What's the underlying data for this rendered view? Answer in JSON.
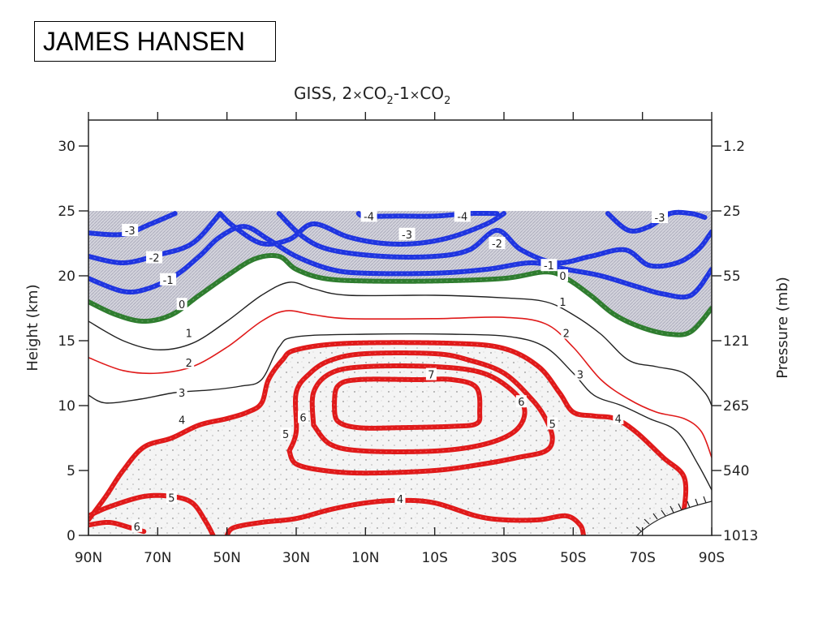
{
  "author": "JAMES HANSEN",
  "chart_data": {
    "type": "contour",
    "title": "GISS, 2×CO2−1×CO2",
    "title_parts": {
      "a": "GISS, 2",
      "b": "CO",
      "c": "2",
      "d": "-1",
      "e": "CO",
      "f": "2"
    },
    "xlabel": "",
    "ylabel": "Height (km)",
    "ylabel_right": "Pressure (mb)",
    "x_ticks": [
      "90N",
      "70N",
      "50N",
      "30N",
      "10N",
      "10S",
      "30S",
      "50S",
      "70S",
      "90S"
    ],
    "x_range": [
      90,
      -90
    ],
    "y_range": [
      0,
      32
    ],
    "y_ticks": [
      0,
      5,
      10,
      15,
      20,
      25,
      30
    ],
    "pressure_ticks": [
      {
        "label": "1.2",
        "height": 30
      },
      {
        "label": "25",
        "height": 25
      },
      {
        "label": "55",
        "height": 20
      },
      {
        "label": "121",
        "height": 15
      },
      {
        "label": "265",
        "height": 10
      },
      {
        "label": "540",
        "height": 5
      },
      {
        "label": "1013",
        "height": 0
      }
    ],
    "model_top_km": 25,
    "shading": {
      "cooling_region": "hatched gray above 0 contour",
      "warming_region": "stippled inside 4 contour"
    },
    "colors": {
      "negative": "#1f35e0",
      "zero": "#2f7d2f",
      "positive_thick": "#e01a1a",
      "positive_thin": "#e01a1a",
      "neutral": "#222222",
      "cooling_fill": "#c9c9d6"
    },
    "contours": [
      {
        "level": -4,
        "color": "blue",
        "points": [
          [
            12,
            24.8
          ],
          [
            10,
            24.6
          ],
          [
            0,
            24.6
          ],
          [
            -10,
            24.6
          ],
          [
            -20,
            24.8
          ],
          [
            -28,
            24.8
          ]
        ]
      },
      {
        "level": -3,
        "color": "blue",
        "points": [
          [
            90,
            23.3
          ],
          [
            80,
            23.2
          ],
          [
            72,
            24
          ],
          [
            65,
            24.8
          ]
        ]
      },
      {
        "level": -3,
        "color": "blue",
        "points": [
          [
            52,
            24.8
          ],
          [
            48,
            23.8
          ],
          [
            40,
            22.5
          ],
          [
            32,
            22.8
          ],
          [
            25,
            24
          ],
          [
            15,
            23
          ],
          [
            5,
            22.5
          ],
          [
            -5,
            22.5
          ],
          [
            -15,
            23
          ],
          [
            -25,
            24
          ],
          [
            -30,
            24.8
          ]
        ]
      },
      {
        "level": -3,
        "color": "blue",
        "points": [
          [
            -60,
            24.8
          ],
          [
            -66,
            23.5
          ],
          [
            -72,
            23.8
          ],
          [
            -78,
            24.8
          ],
          [
            -84,
            24.8
          ],
          [
            -88,
            24.5
          ]
        ]
      },
      {
        "level": -2,
        "color": "blue",
        "points": [
          [
            90,
            21.5
          ],
          [
            80,
            21
          ],
          [
            70,
            21.6
          ],
          [
            60,
            22.5
          ],
          [
            52,
            24.8
          ]
        ]
      },
      {
        "level": -2,
        "color": "blue",
        "points": [
          [
            35,
            24.8
          ],
          [
            28,
            23
          ],
          [
            20,
            22
          ],
          [
            5,
            21.5
          ],
          [
            -10,
            21.5
          ],
          [
            -20,
            22
          ],
          [
            -28,
            23.5
          ],
          [
            -35,
            22
          ],
          [
            -45,
            21
          ],
          [
            -55,
            21.5
          ],
          [
            -65,
            22
          ],
          [
            -72,
            20.8
          ],
          [
            -80,
            21
          ],
          [
            -86,
            22
          ],
          [
            -90,
            23.4
          ]
        ]
      },
      {
        "level": -1,
        "color": "blue",
        "points": [
          [
            90,
            19.8
          ],
          [
            80,
            18.8
          ],
          [
            73,
            19
          ],
          [
            65,
            20
          ],
          [
            58,
            21.5
          ],
          [
            52,
            23
          ],
          [
            45,
            23.8
          ],
          [
            38,
            22.8
          ],
          [
            30,
            21.5
          ],
          [
            20,
            20.5
          ],
          [
            10,
            20.2
          ],
          [
            -10,
            20.2
          ],
          [
            -25,
            20.5
          ],
          [
            -38,
            21
          ],
          [
            -48,
            20.5
          ],
          [
            -58,
            20
          ],
          [
            -68,
            19.2
          ],
          [
            -76,
            18.6
          ],
          [
            -84,
            18.5
          ],
          [
            -90,
            20.5
          ]
        ]
      },
      {
        "level": 0,
        "color": "green",
        "points": [
          [
            90,
            18
          ],
          [
            82,
            17
          ],
          [
            74,
            16.5
          ],
          [
            66,
            17
          ],
          [
            58,
            18.5
          ],
          [
            50,
            20
          ],
          [
            42,
            21.3
          ],
          [
            35,
            21.5
          ],
          [
            30,
            20.5
          ],
          [
            22,
            19.8
          ],
          [
            10,
            19.6
          ],
          [
            -10,
            19.6
          ],
          [
            -30,
            19.8
          ],
          [
            -42,
            20.3
          ],
          [
            -48,
            19.8
          ],
          [
            -55,
            18.5
          ],
          [
            -62,
            17
          ],
          [
            -70,
            16
          ],
          [
            -78,
            15.5
          ],
          [
            -84,
            15.7
          ],
          [
            -90,
            17.5
          ]
        ]
      },
      {
        "level": 1,
        "color": "black",
        "points": [
          [
            90,
            16.5
          ],
          [
            80,
            15
          ],
          [
            70,
            14.3
          ],
          [
            60,
            14.8
          ],
          [
            50,
            16.5
          ],
          [
            40,
            18.5
          ],
          [
            32,
            19.5
          ],
          [
            25,
            19
          ],
          [
            15,
            18.5
          ],
          [
            -10,
            18.5
          ],
          [
            -30,
            18.3
          ],
          [
            -42,
            18
          ],
          [
            -50,
            17
          ],
          [
            -58,
            15.5
          ],
          [
            -66,
            13.5
          ],
          [
            -74,
            13
          ],
          [
            -82,
            12.5
          ],
          [
            -88,
            11
          ],
          [
            -90,
            10
          ]
        ]
      },
      {
        "level": 2,
        "color": "red",
        "points": [
          [
            90,
            13.7
          ],
          [
            80,
            12.7
          ],
          [
            70,
            12.5
          ],
          [
            60,
            13
          ],
          [
            50,
            14.5
          ],
          [
            40,
            16.5
          ],
          [
            33,
            17.3
          ],
          [
            25,
            17
          ],
          [
            15,
            16.7
          ],
          [
            -10,
            16.7
          ],
          [
            -30,
            16.8
          ],
          [
            -42,
            16.3
          ],
          [
            -50,
            14.5
          ],
          [
            -58,
            12
          ],
          [
            -66,
            10.5
          ],
          [
            -74,
            9.5
          ],
          [
            -82,
            9
          ],
          [
            -87,
            8
          ],
          [
            -90,
            6
          ]
        ]
      },
      {
        "level": 3,
        "color": "black",
        "points": [
          [
            90,
            10.8
          ],
          [
            85,
            10.2
          ],
          [
            75,
            10.5
          ],
          [
            65,
            11
          ],
          [
            55,
            11.2
          ],
          [
            46,
            11.5
          ],
          [
            40,
            12
          ],
          [
            35,
            14.5
          ],
          [
            30,
            15.3
          ],
          [
            10,
            15.5
          ],
          [
            -15,
            15.5
          ],
          [
            -32,
            15.3
          ],
          [
            -42,
            14.5
          ],
          [
            -50,
            12.5
          ],
          [
            -56,
            10.8
          ],
          [
            -64,
            10
          ],
          [
            -72,
            9
          ],
          [
            -80,
            8
          ],
          [
            -86,
            5.5
          ],
          [
            -90,
            3.5
          ]
        ]
      },
      {
        "level": 4,
        "color": "red_thick",
        "points": [
          [
            90,
            1.2
          ],
          [
            85,
            3
          ],
          [
            80,
            5
          ],
          [
            74,
            6.8
          ],
          [
            66,
            7.5
          ],
          [
            58,
            8.5
          ],
          [
            50,
            9
          ],
          [
            44,
            9.5
          ],
          [
            40,
            10.2
          ],
          [
            38,
            12
          ],
          [
            34,
            13.5
          ],
          [
            30,
            14.3
          ],
          [
            15,
            14.8
          ],
          [
            -15,
            14.8
          ],
          [
            -30,
            14.4
          ],
          [
            -40,
            13
          ],
          [
            -46,
            11
          ],
          [
            -50,
            9.5
          ],
          [
            -56,
            9.2
          ],
          [
            -62,
            9
          ],
          [
            -68,
            8
          ],
          [
            -76,
            6
          ],
          [
            -82,
            4.5
          ],
          [
            -82,
            2
          ],
          [
            -80,
            0.5
          ],
          [
            -80,
            0.1
          ]
        ]
      },
      {
        "level": 4,
        "color": "red_thick",
        "points": [
          [
            50,
            0
          ],
          [
            48,
            0.6
          ],
          [
            40,
            1
          ],
          [
            30,
            1.3
          ],
          [
            20,
            2
          ],
          [
            10,
            2.5
          ],
          [
            0,
            2.7
          ],
          [
            -10,
            2.5
          ],
          [
            -22,
            1.5
          ],
          [
            -30,
            1.2
          ],
          [
            -40,
            1.2
          ],
          [
            -48,
            1.5
          ],
          [
            -52,
            0.8
          ],
          [
            -53,
            0
          ]
        ]
      },
      {
        "level": 5,
        "color": "red_thick",
        "points": [
          [
            90,
            1.5
          ],
          [
            84,
            2.2
          ],
          [
            74,
            3
          ],
          [
            66,
            3
          ],
          [
            60,
            2.5
          ],
          [
            56,
            1
          ],
          [
            54,
            0
          ]
        ]
      },
      {
        "level": 5,
        "color": "red_thick",
        "points": [
          [
            32,
            6.5
          ],
          [
            30,
            8
          ],
          [
            30,
            11
          ],
          [
            26,
            12.5
          ],
          [
            20,
            13.5
          ],
          [
            10,
            14
          ],
          [
            -10,
            14
          ],
          [
            -20,
            13.5
          ],
          [
            -30,
            12.5
          ],
          [
            -38,
            10.5
          ],
          [
            -42,
            9
          ],
          [
            -44,
            7.5
          ],
          [
            -42,
            6.5
          ],
          [
            -34,
            6
          ],
          [
            -24,
            5.5
          ],
          [
            -10,
            5
          ],
          [
            10,
            4.8
          ],
          [
            22,
            5
          ],
          [
            30,
            5.5
          ],
          [
            32,
            6.5
          ]
        ]
      },
      {
        "level": 6,
        "color": "red_thick",
        "points": [
          [
            90,
            0.8
          ],
          [
            84,
            1
          ],
          [
            78,
            0.6
          ],
          [
            74,
            0.3
          ]
        ]
      },
      {
        "level": 6,
        "color": "red_thick",
        "points": [
          [
            25,
            8.5
          ],
          [
            25,
            11
          ],
          [
            20,
            12.5
          ],
          [
            10,
            13
          ],
          [
            -10,
            13
          ],
          [
            -24,
            12.5
          ],
          [
            -33,
            11
          ],
          [
            -36,
            9.5
          ],
          [
            -33,
            8
          ],
          [
            -24,
            7
          ],
          [
            -10,
            6.5
          ],
          [
            10,
            6.5
          ],
          [
            20,
            7
          ],
          [
            25,
            8.5
          ]
        ]
      },
      {
        "level": 7,
        "color": "red_thick",
        "points": [
          [
            19,
            10
          ],
          [
            18,
            11.5
          ],
          [
            12,
            12
          ],
          [
            -5,
            12
          ],
          [
            -15,
            12
          ],
          [
            -22,
            11.4
          ],
          [
            -23,
            9.5
          ],
          [
            -22,
            8.6
          ],
          [
            -15,
            8.4
          ],
          [
            0,
            8.3
          ],
          [
            12,
            8.3
          ],
          [
            18,
            8.8
          ],
          [
            19,
            10
          ]
        ]
      }
    ],
    "contour_labels": [
      {
        "text": "-4",
        "lon": 9,
        "h": 24.6
      },
      {
        "text": "-4",
        "lon": -18,
        "h": 24.6
      },
      {
        "text": "-3",
        "lon": 78,
        "h": 23.5
      },
      {
        "text": "-3",
        "lon": -2,
        "h": 23.2
      },
      {
        "text": "-3",
        "lon": -75,
        "h": 24.5
      },
      {
        "text": "-2",
        "lon": 71,
        "h": 21.4
      },
      {
        "text": "-2",
        "lon": -28,
        "h": 22.5
      },
      {
        "text": "-1",
        "lon": 67,
        "h": 19.7
      },
      {
        "text": "-1",
        "lon": -43,
        "h": 20.8
      },
      {
        "text": "0",
        "lon": 63,
        "h": 17.8
      },
      {
        "text": "0",
        "lon": -47,
        "h": 20
      },
      {
        "text": "1",
        "lon": 61,
        "h": 15.6
      },
      {
        "text": "1",
        "lon": -47,
        "h": 18
      },
      {
        "text": "2",
        "lon": 61,
        "h": 13.3
      },
      {
        "text": "2",
        "lon": -48,
        "h": 15.6
      },
      {
        "text": "3",
        "lon": 63,
        "h": 11
      },
      {
        "text": "3",
        "lon": -52,
        "h": 12.4
      },
      {
        "text": "4",
        "lon": 63,
        "h": 8.9
      },
      {
        "text": "4",
        "lon": -63,
        "h": 9
      },
      {
        "text": "4",
        "lon": 0,
        "h": 2.8
      },
      {
        "text": "5",
        "lon": 66,
        "h": 2.9
      },
      {
        "text": "5",
        "lon": 33,
        "h": 7.8
      },
      {
        "text": "5",
        "lon": -44,
        "h": 8.6
      },
      {
        "text": "6",
        "lon": 76,
        "h": 0.7
      },
      {
        "text": "6",
        "lon": 28,
        "h": 9.1
      },
      {
        "text": "6",
        "lon": -35,
        "h": 10.3
      },
      {
        "text": "7",
        "lon": -9,
        "h": 12.4
      }
    ]
  }
}
